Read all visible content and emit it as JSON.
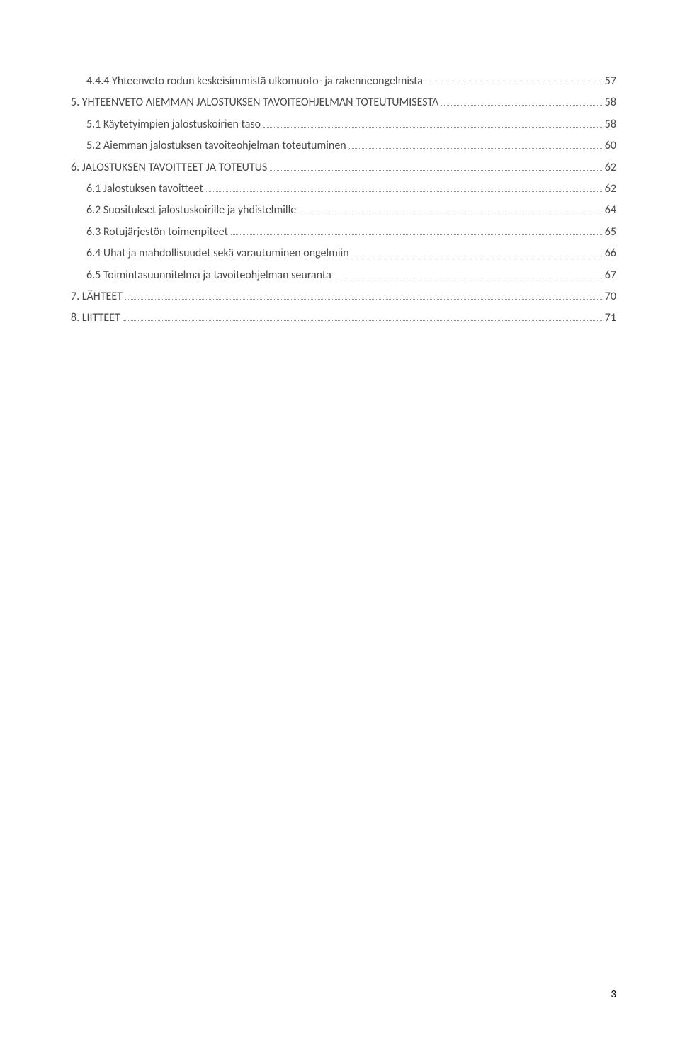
{
  "toc": {
    "entries": [
      {
        "indent": 1,
        "label": "4.4.4 Yhteenveto rodun keskeisimmistä ulkomuoto- ja rakenneongelmista",
        "page": "57"
      },
      {
        "indent": 0,
        "label": "5. YHTEENVETO AIEMMAN JALOSTUKSEN TAVOITEOHJELMAN TOTEUTUMISESTA",
        "page": "58"
      },
      {
        "indent": 1,
        "label": "5.1 Käytetyimpien jalostuskoirien taso",
        "page": "58"
      },
      {
        "indent": 1,
        "label": "5.2 Aiemman jalostuksen tavoiteohjelman toteutuminen",
        "page": "60"
      },
      {
        "indent": 0,
        "label": "6. JALOSTUKSEN TAVOITTEET JA TOTEUTUS",
        "page": "62"
      },
      {
        "indent": 1,
        "label": "6.1 Jalostuksen tavoitteet",
        "page": "62"
      },
      {
        "indent": 1,
        "label": "6.2 Suositukset jalostuskoirille ja yhdistelmille",
        "page": "64"
      },
      {
        "indent": 1,
        "label": "6.3 Rotujärjestön toimenpiteet",
        "page": "65"
      },
      {
        "indent": 1,
        "label": "6.4 Uhat ja mahdollisuudet sekä varautuminen ongelmiin",
        "page": "66"
      },
      {
        "indent": 1,
        "label": "6.5 Toimintasuunnitelma ja tavoiteohjelman seuranta",
        "page": "67"
      },
      {
        "indent": 0,
        "label": "7. LÄHTEET",
        "page": "70"
      },
      {
        "indent": 0,
        "label": "8. LIITTEET",
        "page": "71"
      }
    ]
  },
  "page_number": "3",
  "colors": {
    "background": "#ffffff",
    "text": "#4a4a4a",
    "dots": "#888888",
    "page_num": "#000000"
  }
}
